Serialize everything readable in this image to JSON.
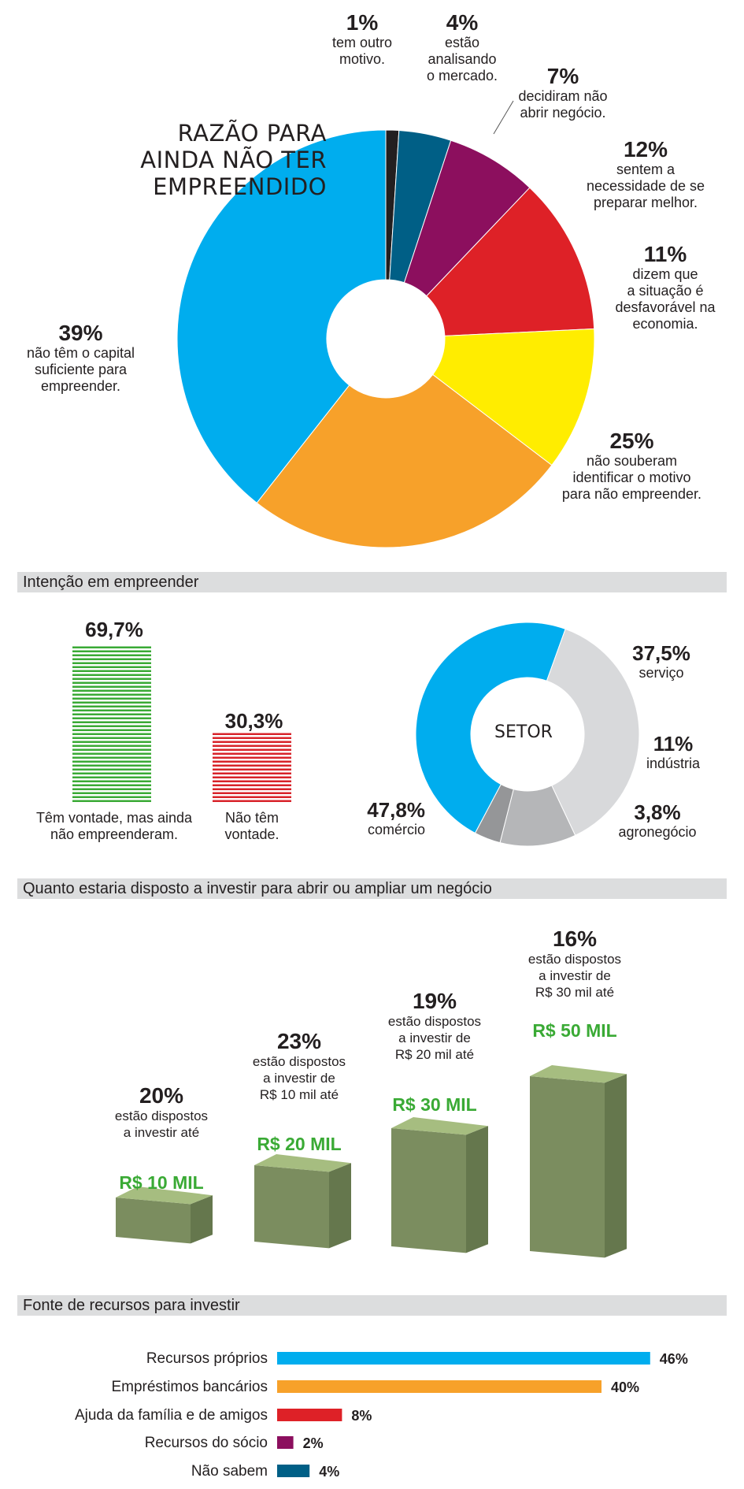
{
  "colors": {
    "pie": [
      "#231f20",
      "#005f86",
      "#8c0f5e",
      "#de2127",
      "#ffed00",
      "#f7a12a",
      "#00adee"
    ],
    "sector": [
      "#00adee",
      "#d8d9db",
      "#b5b6b8",
      "#959698"
    ],
    "intention": [
      "#3aaa35",
      "#d8232a"
    ],
    "box_front": "#7b8d5f",
    "box_top": "#a6bd80",
    "box_side": "#65774d",
    "sources": [
      "#00adee",
      "#f7a12a",
      "#de2127",
      "#8c0f5e",
      "#005f86"
    ],
    "green_text": "#3aaa35",
    "section_bg": "#dcddde"
  },
  "chart_data": [
    {
      "type": "pie",
      "title": "RAZÃO PARA\nAINDA NÃO TER\nEMPREENDIDO",
      "slices": [
        {
          "value": 1,
          "label": "1%",
          "text": "tem outro\nmotivo."
        },
        {
          "value": 4,
          "label": "4%",
          "text": "estão\nanalisando\no mercado."
        },
        {
          "value": 7,
          "label": "7%",
          "text": "decidiram não\nabrir negócio."
        },
        {
          "value": 12,
          "label": "12%",
          "text": "sentem a\nnecessidade de se\npreparar melhor."
        },
        {
          "value": 11,
          "label": "11%",
          "text": "dizem que\na situação é\ndesfavorável na\neconomia."
        },
        {
          "value": 25,
          "label": "25%",
          "text": "não souberam\nidentificar o motivo\npara não empreender."
        },
        {
          "value": 39,
          "label": "39%",
          "text": "não têm o capital\nsuficiente para\nempreender."
        }
      ]
    },
    {
      "type": "bar",
      "title": "Intenção em empreender",
      "bars": [
        {
          "value": 69.7,
          "label": "69,7%",
          "text": "Têm vontade, mas ainda\nnão empreenderam."
        },
        {
          "value": 30.3,
          "label": "30,3%",
          "text": "Não têm\nvontade."
        }
      ]
    },
    {
      "type": "pie",
      "title": "SETOR",
      "slices": [
        {
          "value": 47.8,
          "label": "47,8%",
          "text": "comércio"
        },
        {
          "value": 37.5,
          "label": "37,5%",
          "text": "serviço"
        },
        {
          "value": 11,
          "label": "11%",
          "text": "indústria"
        },
        {
          "value": 3.8,
          "label": "3,8%",
          "text": "agronegócio"
        }
      ]
    },
    {
      "type": "bar",
      "title": "Quanto estaria disposto a investir para abrir ou ampliar um negócio",
      "bars": [
        {
          "value": 20,
          "label": "20%",
          "text": "estão dispostos\na investir até",
          "amount": "R$ 10 MIL"
        },
        {
          "value": 23,
          "label": "23%",
          "text": "estão dispostos\na investir de\nR$ 10 mil até",
          "amount": "R$ 20 MIL"
        },
        {
          "value": 19,
          "label": "19%",
          "text": "estão dispostos\na investir de\nR$ 20 mil até",
          "amount": "R$ 30 MIL"
        },
        {
          "value": 16,
          "label": "16%",
          "text": "estão dispostos\na investir de\nR$ 30 mil até",
          "amount": "R$ 50 MIL"
        }
      ]
    },
    {
      "type": "bar",
      "orientation": "horizontal",
      "title": "Fonte de recursos para investir",
      "categories": [
        "Recursos próprios",
        "Empréstimos bancários",
        "Ajuda da família e de amigos",
        "Recursos do sócio",
        "Não sabem"
      ],
      "values": [
        46,
        40,
        8,
        2,
        4
      ],
      "labels": [
        "46%",
        "40%",
        "8%",
        "2%",
        "4%"
      ]
    }
  ]
}
